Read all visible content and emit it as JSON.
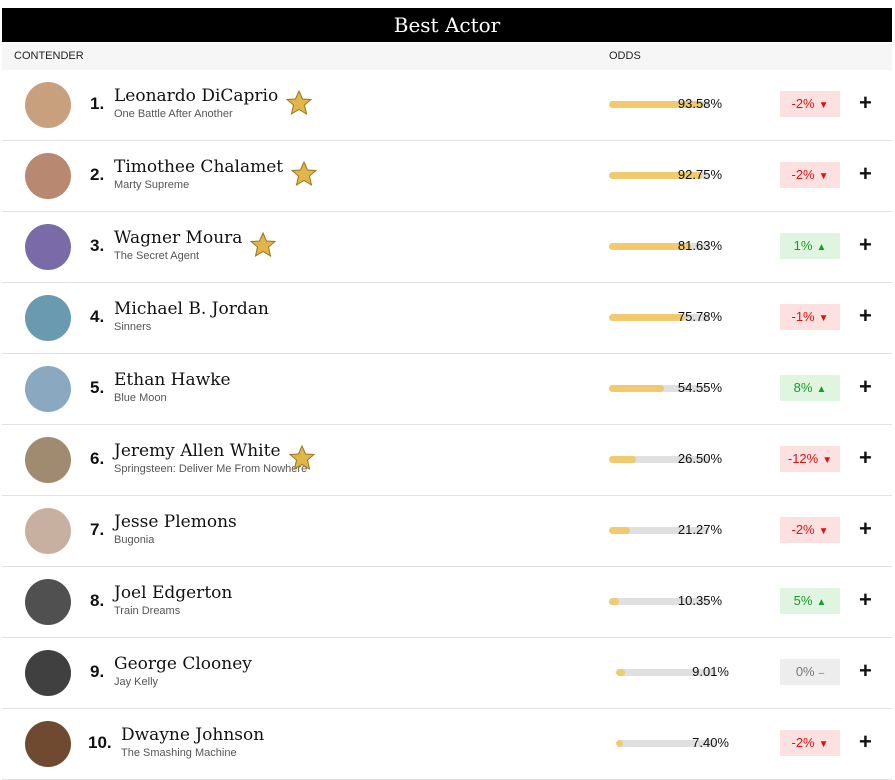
{
  "header": {
    "title": "Best Actor"
  },
  "columns": {
    "contender": "CONTENDER",
    "odds": "ODDS"
  },
  "rows": [
    {
      "rank": "1.",
      "name": "Leonardo DiCaprio",
      "film": "One Battle After Another",
      "odds": 93.58,
      "odds_label": "93.58%",
      "change": "-2%",
      "trend": "down",
      "starred": true
    },
    {
      "rank": "2.",
      "name": "Timothee Chalamet",
      "film": "Marty Supreme",
      "odds": 92.75,
      "odds_label": "92.75%",
      "change": "-2%",
      "trend": "down",
      "starred": true
    },
    {
      "rank": "3.",
      "name": "Wagner Moura",
      "film": "The Secret Agent",
      "odds": 81.63,
      "odds_label": "81.63%",
      "change": "1%",
      "trend": "up",
      "starred": true
    },
    {
      "rank": "4.",
      "name": "Michael B. Jordan",
      "film": "Sinners",
      "odds": 75.78,
      "odds_label": "75.78%",
      "change": "-1%",
      "trend": "down",
      "starred": false
    },
    {
      "rank": "5.",
      "name": "Ethan Hawke",
      "film": "Blue Moon",
      "odds": 54.55,
      "odds_label": "54.55%",
      "change": "8%",
      "trend": "up",
      "starred": false
    },
    {
      "rank": "6.",
      "name": "Jeremy Allen White",
      "film": "Springsteen: Deliver Me From Nowhere",
      "odds": 26.5,
      "odds_label": "26.50%",
      "change": "-12%",
      "trend": "down",
      "starred": true
    },
    {
      "rank": "7.",
      "name": "Jesse Plemons",
      "film": "Bugonia",
      "odds": 21.27,
      "odds_label": "21.27%",
      "change": "-2%",
      "trend": "down",
      "starred": false
    },
    {
      "rank": "8.",
      "name": "Joel Edgerton",
      "film": "Train Dreams",
      "odds": 10.35,
      "odds_label": "10.35%",
      "change": "5%",
      "trend": "up",
      "starred": false
    },
    {
      "rank": "9.",
      "name": "George Clooney",
      "film": "Jay Kelly",
      "odds": 9.01,
      "odds_label": "9.01%",
      "change": "0%",
      "trend": "flat",
      "starred": false
    },
    {
      "rank": "10.",
      "name": "Dwayne Johnson",
      "film": "The Smashing Machine",
      "odds": 7.4,
      "odds_label": "7.40%",
      "change": "-2%",
      "trend": "down",
      "starred": false
    }
  ]
}
